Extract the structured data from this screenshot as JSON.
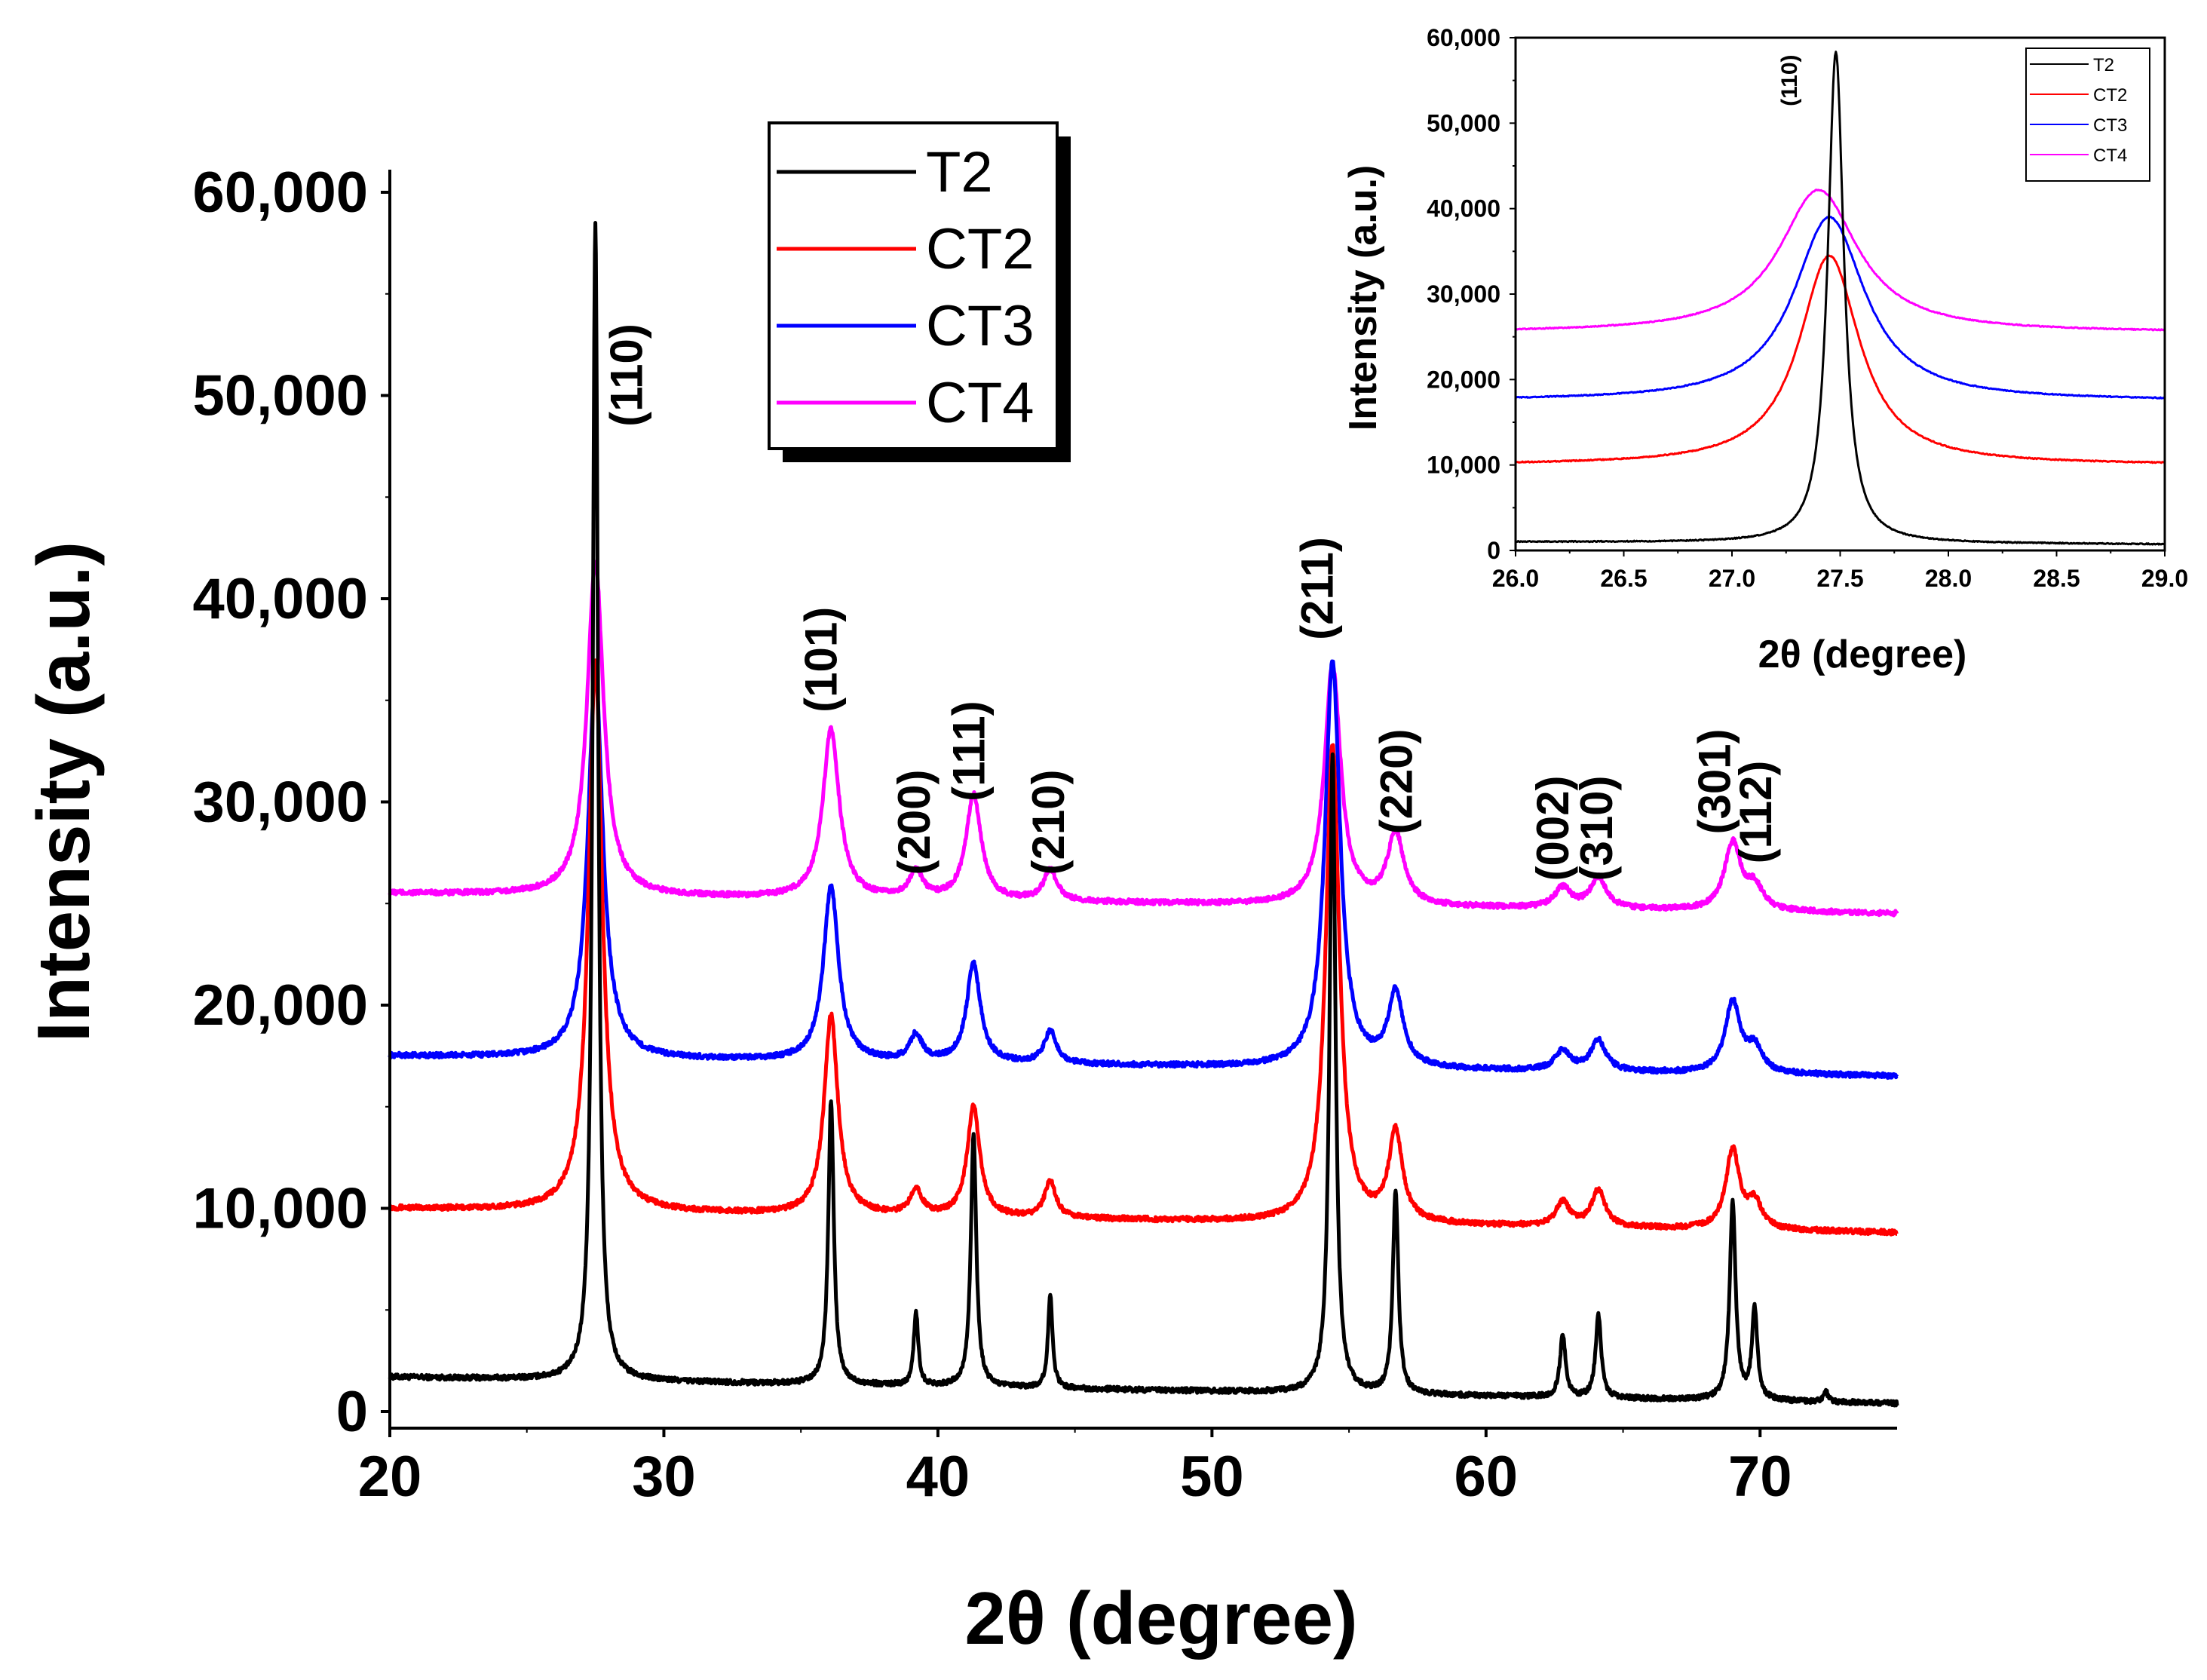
{
  "chart_data": [
    {
      "type": "line",
      "title": "",
      "xlabel": "2θ (degree)",
      "ylabel": "Intensity (a.u.)",
      "xlim": [
        20,
        75
      ],
      "ylim": [
        0,
        60000
      ],
      "xticks": [
        20,
        30,
        40,
        50,
        60,
        70
      ],
      "xtick_labels": [
        "20",
        "30",
        "40",
        "50",
        "60",
        "70"
      ],
      "yticks": [
        0,
        10000,
        20000,
        30000,
        40000,
        50000,
        60000
      ],
      "ytick_labels": [
        "0",
        "10,000",
        "20,000",
        "30,000",
        "40,000",
        "50,000",
        "60,000"
      ],
      "legend": {
        "placement": "top-center",
        "entries": [
          "T2",
          "CT2",
          "CT3",
          "CT4"
        ]
      },
      "series": [
        {
          "name": "T2",
          "color": "#000000",
          "baseline_start": 1700,
          "baseline_end": 400,
          "peaks": [
            [
              27.5,
              57000,
              0.12
            ],
            [
              36.1,
              14000,
              0.12
            ],
            [
              39.2,
              3600,
              0.1
            ],
            [
              41.3,
              12500,
              0.12
            ],
            [
              44.1,
              4600,
              0.1
            ],
            [
              54.4,
              31500,
              0.13
            ],
            [
              56.7,
              10000,
              0.12
            ],
            [
              62.8,
              3100,
              0.12
            ],
            [
              64.1,
              4100,
              0.12
            ],
            [
              69.0,
              9700,
              0.13
            ],
            [
              69.8,
              4400,
              0.12
            ],
            [
              72.4,
              500,
              0.1
            ]
          ]
        },
        {
          "name": "CT2",
          "color": "#ff0000",
          "baseline_start": 10000,
          "baseline_end": 8800,
          "peaks": [
            [
              27.5,
              27000,
              0.3
            ],
            [
              36.1,
              9800,
              0.3
            ],
            [
              39.2,
              1300,
              0.25
            ],
            [
              41.3,
              5400,
              0.28
            ],
            [
              44.1,
              1800,
              0.25
            ],
            [
              54.4,
              23500,
              0.3
            ],
            [
              56.7,
              4400,
              0.3
            ],
            [
              62.8,
              1200,
              0.3
            ],
            [
              64.1,
              1800,
              0.3
            ],
            [
              69.0,
              3900,
              0.3
            ],
            [
              69.8,
              1300,
              0.3
            ]
          ]
        },
        {
          "name": "CT3",
          "color": "#0000ff",
          "baseline_start": 17500,
          "baseline_end": 16500,
          "peaks": [
            [
              27.5,
              19000,
              0.33
            ],
            [
              36.1,
              8600,
              0.33
            ],
            [
              39.2,
              1300,
              0.27
            ],
            [
              41.3,
              4900,
              0.3
            ],
            [
              44.1,
              1600,
              0.27
            ],
            [
              54.4,
              20000,
              0.33
            ],
            [
              56.7,
              3600,
              0.33
            ],
            [
              62.8,
              1000,
              0.33
            ],
            [
              64.1,
              1500,
              0.33
            ],
            [
              69.0,
              3500,
              0.33
            ],
            [
              69.8,
              1200,
              0.33
            ]
          ]
        },
        {
          "name": "CT4",
          "color": "#ff00ff",
          "baseline_start": 25500,
          "baseline_end": 24500,
          "peaks": [
            [
              27.5,
              16500,
              0.36
            ],
            [
              36.1,
              8300,
              0.36
            ],
            [
              39.2,
              1300,
              0.3
            ],
            [
              41.3,
              5200,
              0.33
            ],
            [
              44.1,
              1500,
              0.3
            ],
            [
              54.4,
              11800,
              0.36
            ],
            [
              56.7,
              3500,
              0.36
            ],
            [
              62.8,
              1000,
              0.36
            ],
            [
              64.1,
              1500,
              0.36
            ],
            [
              69.0,
              3300,
              0.36
            ],
            [
              69.8,
              1100,
              0.36
            ]
          ]
        }
      ],
      "annotations": [
        {
          "text": "(110)",
          "x": 29.2,
          "y": 51000
        },
        {
          "text": "(101)",
          "x": 36.3,
          "y": 37000
        },
        {
          "text": "(200)",
          "x": 39.7,
          "y": 29000
        },
        {
          "text": "(111)",
          "x": 41.7,
          "y": 32500
        },
        {
          "text": "(210)",
          "x": 44.6,
          "y": 29000
        },
        {
          "text": "(211)",
          "x": 54.4,
          "y": 40500
        },
        {
          "text": "(220)",
          "x": 57.3,
          "y": 31000
        },
        {
          "text": "(002)",
          "x": 63.0,
          "y": 28700
        },
        {
          "text": "(310)",
          "x": 64.6,
          "y": 28700
        },
        {
          "text": "(301)",
          "x": 68.9,
          "y": 31000
        },
        {
          "text": "(112)",
          "x": 70.4,
          "y": 29500
        }
      ]
    },
    {
      "type": "line",
      "title": "",
      "xlabel": "2θ (degree)",
      "ylabel": "Intensity (a.u.)",
      "xlim": [
        26.0,
        29.0
      ],
      "ylim": [
        0,
        60000
      ],
      "xticks": [
        26.0,
        26.5,
        27.0,
        27.5,
        28.0,
        28.5,
        29.0
      ],
      "xtick_labels": [
        "26.0",
        "26.5",
        "27.0",
        "27.5",
        "28.0",
        "28.5",
        "29.0"
      ],
      "yticks": [
        0,
        10000,
        20000,
        30000,
        40000,
        50000,
        60000
      ],
      "ytick_labels": [
        "0",
        "10,000",
        "20,000",
        "30,000",
        "40,000",
        "50,000",
        "60,000"
      ],
      "legend": {
        "placement": "top-right",
        "entries": [
          "T2",
          "CT2",
          "CT3",
          "CT4"
        ]
      },
      "series": [
        {
          "name": "T2",
          "color": "#000000",
          "baseline_start": 1000,
          "baseline_end": 700,
          "peaks": [
            [
              27.48,
              57500,
              0.045
            ]
          ]
        },
        {
          "name": "CT2",
          "color": "#ff0000",
          "baseline_start": 10000,
          "baseline_end": 10000,
          "peaks": [
            [
              27.45,
              24500,
              0.17
            ]
          ]
        },
        {
          "name": "CT3",
          "color": "#0000ff",
          "baseline_start": 17500,
          "baseline_end": 17500,
          "peaks": [
            [
              27.45,
              21500,
              0.2
            ]
          ]
        },
        {
          "name": "CT4",
          "color": "#ff00ff",
          "baseline_start": 25500,
          "baseline_end": 25500,
          "peaks": [
            [
              27.4,
              16700,
              0.22
            ]
          ]
        }
      ],
      "annotations": [
        {
          "text": "(110)",
          "x": 27.3,
          "y": 55000
        }
      ]
    }
  ]
}
